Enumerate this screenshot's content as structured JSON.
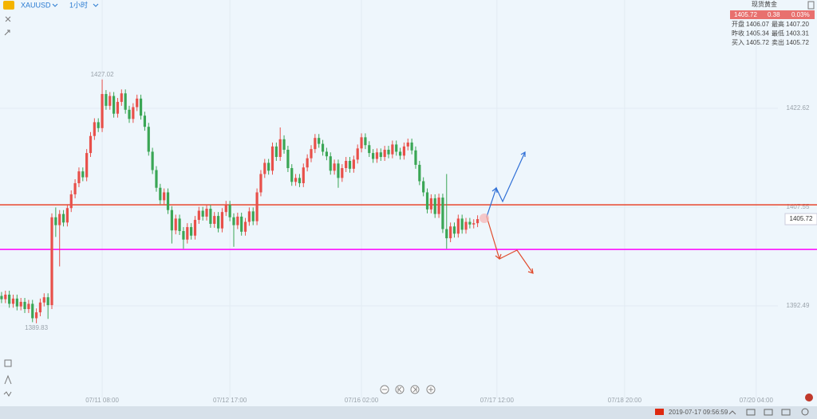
{
  "header": {
    "symbol": "XAUUSD",
    "timeframe": "1小时"
  },
  "quote": {
    "name": "现货黄金",
    "price": "1405.72",
    "change": "0.38",
    "change_percent": "0.03%",
    "rows": [
      [
        {
          "label": "开盘",
          "value": "1406.07"
        },
        {
          "label": "最高",
          "value": "1407.20"
        }
      ],
      [
        {
          "label": "昨收",
          "value": "1405.34"
        },
        {
          "label": "最低",
          "value": "1403.31"
        }
      ],
      [
        {
          "label": "买入",
          "value": "1405.72"
        },
        {
          "label": "卖出",
          "value": "1405.72"
        }
      ]
    ]
  },
  "status": {
    "datetime": "2019-07-17 09:56:59"
  },
  "chart_data": {
    "type": "candlestick",
    "open": [
      1394.0,
      1393.5,
      1394.2,
      1392.8,
      1393.6,
      1392.4,
      1393.1,
      1392.0,
      1392.8,
      1390.6,
      1391.5,
      1393.0,
      1393.8,
      1392.6,
      1406.0,
      1404.8,
      1406.5,
      1405.2,
      1407.4,
      1409.5,
      1411.2,
      1413.0,
      1412.1,
      1415.8,
      1418.4,
      1420.5,
      1419.6,
      1424.8,
      1423.0,
      1424.5,
      1421.8,
      1423.6,
      1424.9,
      1422.4,
      1421.0,
      1422.8,
      1424.1,
      1421.5,
      1419.8,
      1416.0,
      1413.2,
      1410.5,
      1408.6,
      1409.8,
      1407.1,
      1404.0,
      1405.8,
      1403.9,
      1402.6,
      1404.5,
      1403.2,
      1405.6,
      1407.0,
      1406.1,
      1407.3,
      1405.0,
      1406.2,
      1404.3,
      1406.8,
      1407.9,
      1406.0,
      1404.8,
      1406.1,
      1403.8,
      1405.3,
      1406.9,
      1405.4,
      1409.8,
      1412.6,
      1414.3,
      1413.1,
      1416.8,
      1415.2,
      1417.9,
      1416.3,
      1413.5,
      1411.4,
      1412.0,
      1411.2,
      1413.6,
      1415.0,
      1416.4,
      1418.1,
      1417.2,
      1416.0,
      1415.3,
      1413.1,
      1414.2,
      1412.0,
      1413.5,
      1414.6,
      1413.4,
      1414.8,
      1416.5,
      1418.2,
      1417.0,
      1415.8,
      1414.9,
      1415.9,
      1415.2,
      1416.3,
      1415.6,
      1417.1,
      1416.0,
      1415.4,
      1416.8,
      1417.4,
      1416.2,
      1414.0,
      1411.5,
      1409.8,
      1407.2,
      1408.9,
      1406.5,
      1409.0,
      1404.2,
      1402.8,
      1404.6,
      1403.5,
      1405.8,
      1404.1,
      1405.3,
      1404.9,
      1405.1
    ],
    "high": [
      1394.6,
      1394.8,
      1394.8,
      1394.2,
      1394.2,
      1393.7,
      1393.7,
      1393.4,
      1393.4,
      1392.1,
      1393.6,
      1394.4,
      1394.4,
      1406.6,
      1407.5,
      1407.1,
      1407.1,
      1408.0,
      1410.1,
      1411.8,
      1413.6,
      1413.6,
      1416.4,
      1419.0,
      1421.1,
      1421.1,
      1427.02,
      1425.4,
      1425.1,
      1425.1,
      1424.2,
      1425.5,
      1425.5,
      1423.0,
      1423.4,
      1424.7,
      1424.7,
      1422.1,
      1420.4,
      1416.6,
      1413.8,
      1411.1,
      1410.4,
      1410.4,
      1407.7,
      1406.4,
      1406.4,
      1404.5,
      1405.1,
      1405.1,
      1406.2,
      1407.6,
      1407.6,
      1407.9,
      1407.9,
      1406.8,
      1406.8,
      1407.4,
      1408.5,
      1408.5,
      1406.6,
      1406.7,
      1406.7,
      1405.9,
      1407.5,
      1407.5,
      1410.4,
      1413.2,
      1414.9,
      1414.9,
      1417.4,
      1417.4,
      1419.7,
      1418.5,
      1416.9,
      1414.1,
      1412.6,
      1412.6,
      1414.2,
      1415.6,
      1417.0,
      1418.7,
      1418.7,
      1417.8,
      1416.6,
      1415.9,
      1414.8,
      1414.8,
      1414.1,
      1415.2,
      1415.2,
      1415.4,
      1417.1,
      1418.8,
      1418.8,
      1417.6,
      1416.4,
      1416.5,
      1416.5,
      1416.9,
      1416.9,
      1417.7,
      1417.7,
      1416.6,
      1417.4,
      1418.0,
      1418.0,
      1416.8,
      1414.6,
      1412.1,
      1410.4,
      1409.5,
      1409.5,
      1409.6,
      1409.6,
      1412.6,
      1405.2,
      1405.2,
      1406.4,
      1406.4,
      1405.9,
      1405.9,
      1405.7,
      1406.3
    ],
    "low": [
      1392.9,
      1392.9,
      1392.2,
      1392.2,
      1391.8,
      1391.8,
      1391.4,
      1391.4,
      1390.0,
      1389.83,
      1390.9,
      1392.4,
      1390.5,
      1392.0,
      1403.0,
      1398.5,
      1404.6,
      1404.6,
      1406.8,
      1408.9,
      1410.6,
      1411.5,
      1411.5,
      1415.2,
      1417.8,
      1419.0,
      1419.0,
      1422.4,
      1422.4,
      1421.2,
      1421.2,
      1423.0,
      1421.8,
      1420.4,
      1420.4,
      1422.2,
      1420.9,
      1419.2,
      1415.4,
      1412.6,
      1409.9,
      1408.0,
      1408.0,
      1406.5,
      1402.0,
      1403.4,
      1403.3,
      1401.2,
      1402.0,
      1402.6,
      1402.6,
      1405.0,
      1405.5,
      1405.5,
      1404.4,
      1404.4,
      1403.7,
      1403.7,
      1406.2,
      1405.4,
      1401.5,
      1404.2,
      1403.2,
      1403.2,
      1404.7,
      1404.8,
      1404.8,
      1409.2,
      1412.0,
      1412.5,
      1412.5,
      1414.6,
      1414.6,
      1415.7,
      1412.9,
      1410.8,
      1410.8,
      1410.6,
      1410.6,
      1413.0,
      1414.4,
      1415.8,
      1416.6,
      1415.4,
      1414.7,
      1412.5,
      1412.5,
      1410.5,
      1411.4,
      1412.9,
      1412.8,
      1412.8,
      1414.2,
      1415.9,
      1416.4,
      1415.2,
      1414.3,
      1414.3,
      1414.6,
      1414.6,
      1415.0,
      1415.0,
      1415.4,
      1414.8,
      1414.8,
      1416.2,
      1415.6,
      1413.4,
      1410.9,
      1409.2,
      1406.6,
      1406.6,
      1405.9,
      1405.9,
      1403.6,
      1401.2,
      1402.2,
      1402.9,
      1402.9,
      1403.5,
      1403.5,
      1404.3,
      1404.3,
      1404.5
    ],
    "close": [
      1393.5,
      1394.2,
      1392.8,
      1393.6,
      1392.4,
      1393.1,
      1392.0,
      1392.8,
      1390.6,
      1391.5,
      1393.0,
      1393.8,
      1392.6,
      1406.0,
      1404.8,
      1406.5,
      1405.2,
      1407.4,
      1409.5,
      1411.2,
      1413.0,
      1412.1,
      1415.8,
      1418.4,
      1420.5,
      1419.6,
      1424.8,
      1423.0,
      1424.5,
      1421.8,
      1423.6,
      1424.9,
      1422.4,
      1421.0,
      1422.8,
      1424.1,
      1421.5,
      1419.8,
      1416.0,
      1413.2,
      1410.5,
      1408.6,
      1409.8,
      1407.1,
      1404.0,
      1405.8,
      1403.9,
      1402.6,
      1404.5,
      1403.2,
      1405.6,
      1407.0,
      1406.1,
      1407.3,
      1405.0,
      1406.2,
      1404.3,
      1406.8,
      1407.9,
      1406.0,
      1404.8,
      1406.1,
      1403.8,
      1405.3,
      1406.9,
      1405.4,
      1409.8,
      1412.6,
      1414.3,
      1413.1,
      1416.8,
      1415.2,
      1417.9,
      1416.3,
      1413.5,
      1411.4,
      1412.0,
      1411.2,
      1413.6,
      1415.0,
      1416.4,
      1418.1,
      1417.2,
      1416.0,
      1415.3,
      1413.1,
      1414.2,
      1412.0,
      1413.5,
      1414.6,
      1413.4,
      1414.8,
      1416.5,
      1418.2,
      1417.0,
      1415.8,
      1414.9,
      1415.9,
      1415.2,
      1416.3,
      1415.6,
      1417.1,
      1416.0,
      1415.4,
      1416.8,
      1417.4,
      1416.2,
      1414.0,
      1411.5,
      1409.8,
      1407.2,
      1408.9,
      1406.5,
      1409.0,
      1404.2,
      1402.8,
      1404.6,
      1403.5,
      1405.8,
      1404.1,
      1405.3,
      1404.9,
      1405.1,
      1405.72
    ],
    "up_color": "#e8504a",
    "down_color": "#3aa655",
    "xlim": [
      -0.4,
      200.6
    ],
    "xticks": [
      {
        "value": 26,
        "label": "07/11 08:00"
      },
      {
        "value": 59,
        "label": "07/12 17:00"
      },
      {
        "value": 93,
        "label": "07/16 02:00"
      },
      {
        "value": 128,
        "label": "07/17 12:00"
      },
      {
        "value": 161,
        "label": "07/18 20:00"
      },
      {
        "value": 195,
        "label": "07/20 04:00"
      }
    ],
    "ylim": [
      1378.39,
      1439.14
    ],
    "yticks": [
      1422.62,
      1407.55,
      1392.49
    ],
    "levels": [
      {
        "value": 1407.9,
        "color": "#e8452c"
      },
      {
        "value": 1401.1,
        "color": "#ff00ff"
      }
    ],
    "grid": true
  }
}
